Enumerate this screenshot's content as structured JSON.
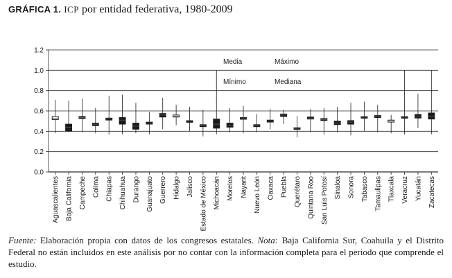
{
  "figure": {
    "label": "GRÁFICA 1.",
    "title_acronym": "ICP",
    "title_rest": "por entidad federativa, 1980-2009"
  },
  "chart_data": {
    "type": "boxplot",
    "ylim": [
      0,
      1.2
    ],
    "yticks": [
      "0.0",
      "0.2",
      "0.4",
      "0.6",
      "0.8",
      "1.0",
      "1.2"
    ],
    "grid": true,
    "legend": {
      "media": "Media",
      "maximo": "Máximo",
      "minimo": "Mínimo",
      "mediana": "Mediana"
    },
    "states": [
      {
        "name": "Aguascalientes",
        "min": 0.38,
        "q1": 0.515,
        "median": 0.53,
        "q3": 0.545,
        "max": 0.71,
        "filled": false
      },
      {
        "name": "Baja California",
        "min": 0.39,
        "q1": 0.4,
        "median": 0.44,
        "q3": 0.47,
        "max": 0.7,
        "filled": true
      },
      {
        "name": "Campeche",
        "min": 0.39,
        "q1": 0.525,
        "median": 0.535,
        "q3": 0.545,
        "max": 0.72,
        "filled": true
      },
      {
        "name": "Colima",
        "min": 0.38,
        "q1": 0.455,
        "median": 0.47,
        "q3": 0.48,
        "max": 0.63,
        "filled": true
      },
      {
        "name": "Chiapas",
        "min": 0.37,
        "q1": 0.51,
        "median": 0.52,
        "q3": 0.53,
        "max": 0.75,
        "filled": true
      },
      {
        "name": "Chihuahua",
        "min": 0.37,
        "q1": 0.47,
        "median": 0.51,
        "q3": 0.535,
        "max": 0.76,
        "filled": true
      },
      {
        "name": "Durango",
        "min": 0.38,
        "q1": 0.42,
        "median": 0.45,
        "q3": 0.48,
        "max": 0.68,
        "filled": true
      },
      {
        "name": "Guanajuato",
        "min": 0.37,
        "q1": 0.47,
        "median": 0.48,
        "q3": 0.49,
        "max": 0.59,
        "filled": true
      },
      {
        "name": "Guerrero",
        "min": 0.42,
        "q1": 0.54,
        "median": 0.56,
        "q3": 0.575,
        "max": 0.73,
        "filled": true
      },
      {
        "name": "Hidalgo",
        "min": 0.46,
        "q1": 0.54,
        "median": 0.55,
        "q3": 0.56,
        "max": 0.66,
        "filled": false
      },
      {
        "name": "Jalisco",
        "min": 0.4,
        "q1": 0.495,
        "median": 0.5,
        "q3": 0.505,
        "max": 0.64,
        "filled": true
      },
      {
        "name": "Estado de México",
        "min": 0.35,
        "q1": 0.445,
        "median": 0.455,
        "q3": 0.465,
        "max": 0.61,
        "filled": true
      },
      {
        "name": "Michoacán",
        "min": 0.37,
        "q1": 0.43,
        "median": 0.47,
        "q3": 0.52,
        "max": 1.0,
        "filled": true
      },
      {
        "name": "Morelos",
        "min": 0.39,
        "q1": 0.44,
        "median": 0.46,
        "q3": 0.48,
        "max": 0.63,
        "filled": true
      },
      {
        "name": "Nayarit",
        "min": 0.38,
        "q1": 0.525,
        "median": 0.53,
        "q3": 0.535,
        "max": 0.65,
        "filled": true
      },
      {
        "name": "Nuevo León",
        "min": 0.39,
        "q1": 0.445,
        "median": 0.455,
        "q3": 0.465,
        "max": 0.57,
        "filled": true
      },
      {
        "name": "Oaxaca",
        "min": 0.42,
        "q1": 0.49,
        "median": 0.5,
        "q3": 0.51,
        "max": 0.62,
        "filled": true
      },
      {
        "name": "Puebla",
        "min": 0.47,
        "q1": 0.545,
        "median": 0.56,
        "q3": 0.57,
        "max": 0.61,
        "filled": true
      },
      {
        "name": "Querétaro",
        "min": 0.34,
        "q1": 0.425,
        "median": 0.43,
        "q3": 0.435,
        "max": 0.55,
        "filled": true
      },
      {
        "name": "Quintana Roo",
        "min": 0.39,
        "q1": 0.52,
        "median": 0.53,
        "q3": 0.54,
        "max": 0.62,
        "filled": true
      },
      {
        "name": "San Luis Potosí",
        "min": 0.37,
        "q1": 0.505,
        "median": 0.515,
        "q3": 0.525,
        "max": 0.63,
        "filled": true
      },
      {
        "name": "Sinaloa",
        "min": 0.39,
        "q1": 0.465,
        "median": 0.48,
        "q3": 0.5,
        "max": 0.64,
        "filled": true
      },
      {
        "name": "Sonora",
        "min": 0.36,
        "q1": 0.47,
        "median": 0.49,
        "q3": 0.505,
        "max": 0.68,
        "filled": true
      },
      {
        "name": "Tabasco",
        "min": 0.4,
        "q1": 0.535,
        "median": 0.54,
        "q3": 0.545,
        "max": 0.69,
        "filled": true
      },
      {
        "name": "Tamaulipas",
        "min": 0.39,
        "q1": 0.535,
        "median": 0.545,
        "q3": 0.555,
        "max": 0.66,
        "filled": true
      },
      {
        "name": "Tlaxcala",
        "min": 0.38,
        "q1": 0.49,
        "median": 0.5,
        "q3": 0.51,
        "max": 0.56,
        "filled": false
      },
      {
        "name": "Veracruz",
        "min": 0.37,
        "q1": 0.535,
        "median": 0.54,
        "q3": 0.545,
        "max": 1.0,
        "filled": true
      },
      {
        "name": "Yucatán",
        "min": 0.43,
        "q1": 0.53,
        "median": 0.55,
        "q3": 0.565,
        "max": 0.77,
        "filled": true
      },
      {
        "name": "Zacatecas",
        "min": 0.37,
        "q1": 0.52,
        "median": 0.55,
        "q3": 0.58,
        "max": 1.0,
        "filled": true
      }
    ]
  },
  "notes": {
    "fuente_label": "Fuente:",
    "fuente_text": " Elaboración propia con datos de los congresos estatales. ",
    "nota_label": "Nota:",
    "nota_text": " Baja California Sur, Coahuila y el Distrito Federal no están incluidos en este análisis por no contar con la información completa para el periodo que comprende el estudio."
  }
}
